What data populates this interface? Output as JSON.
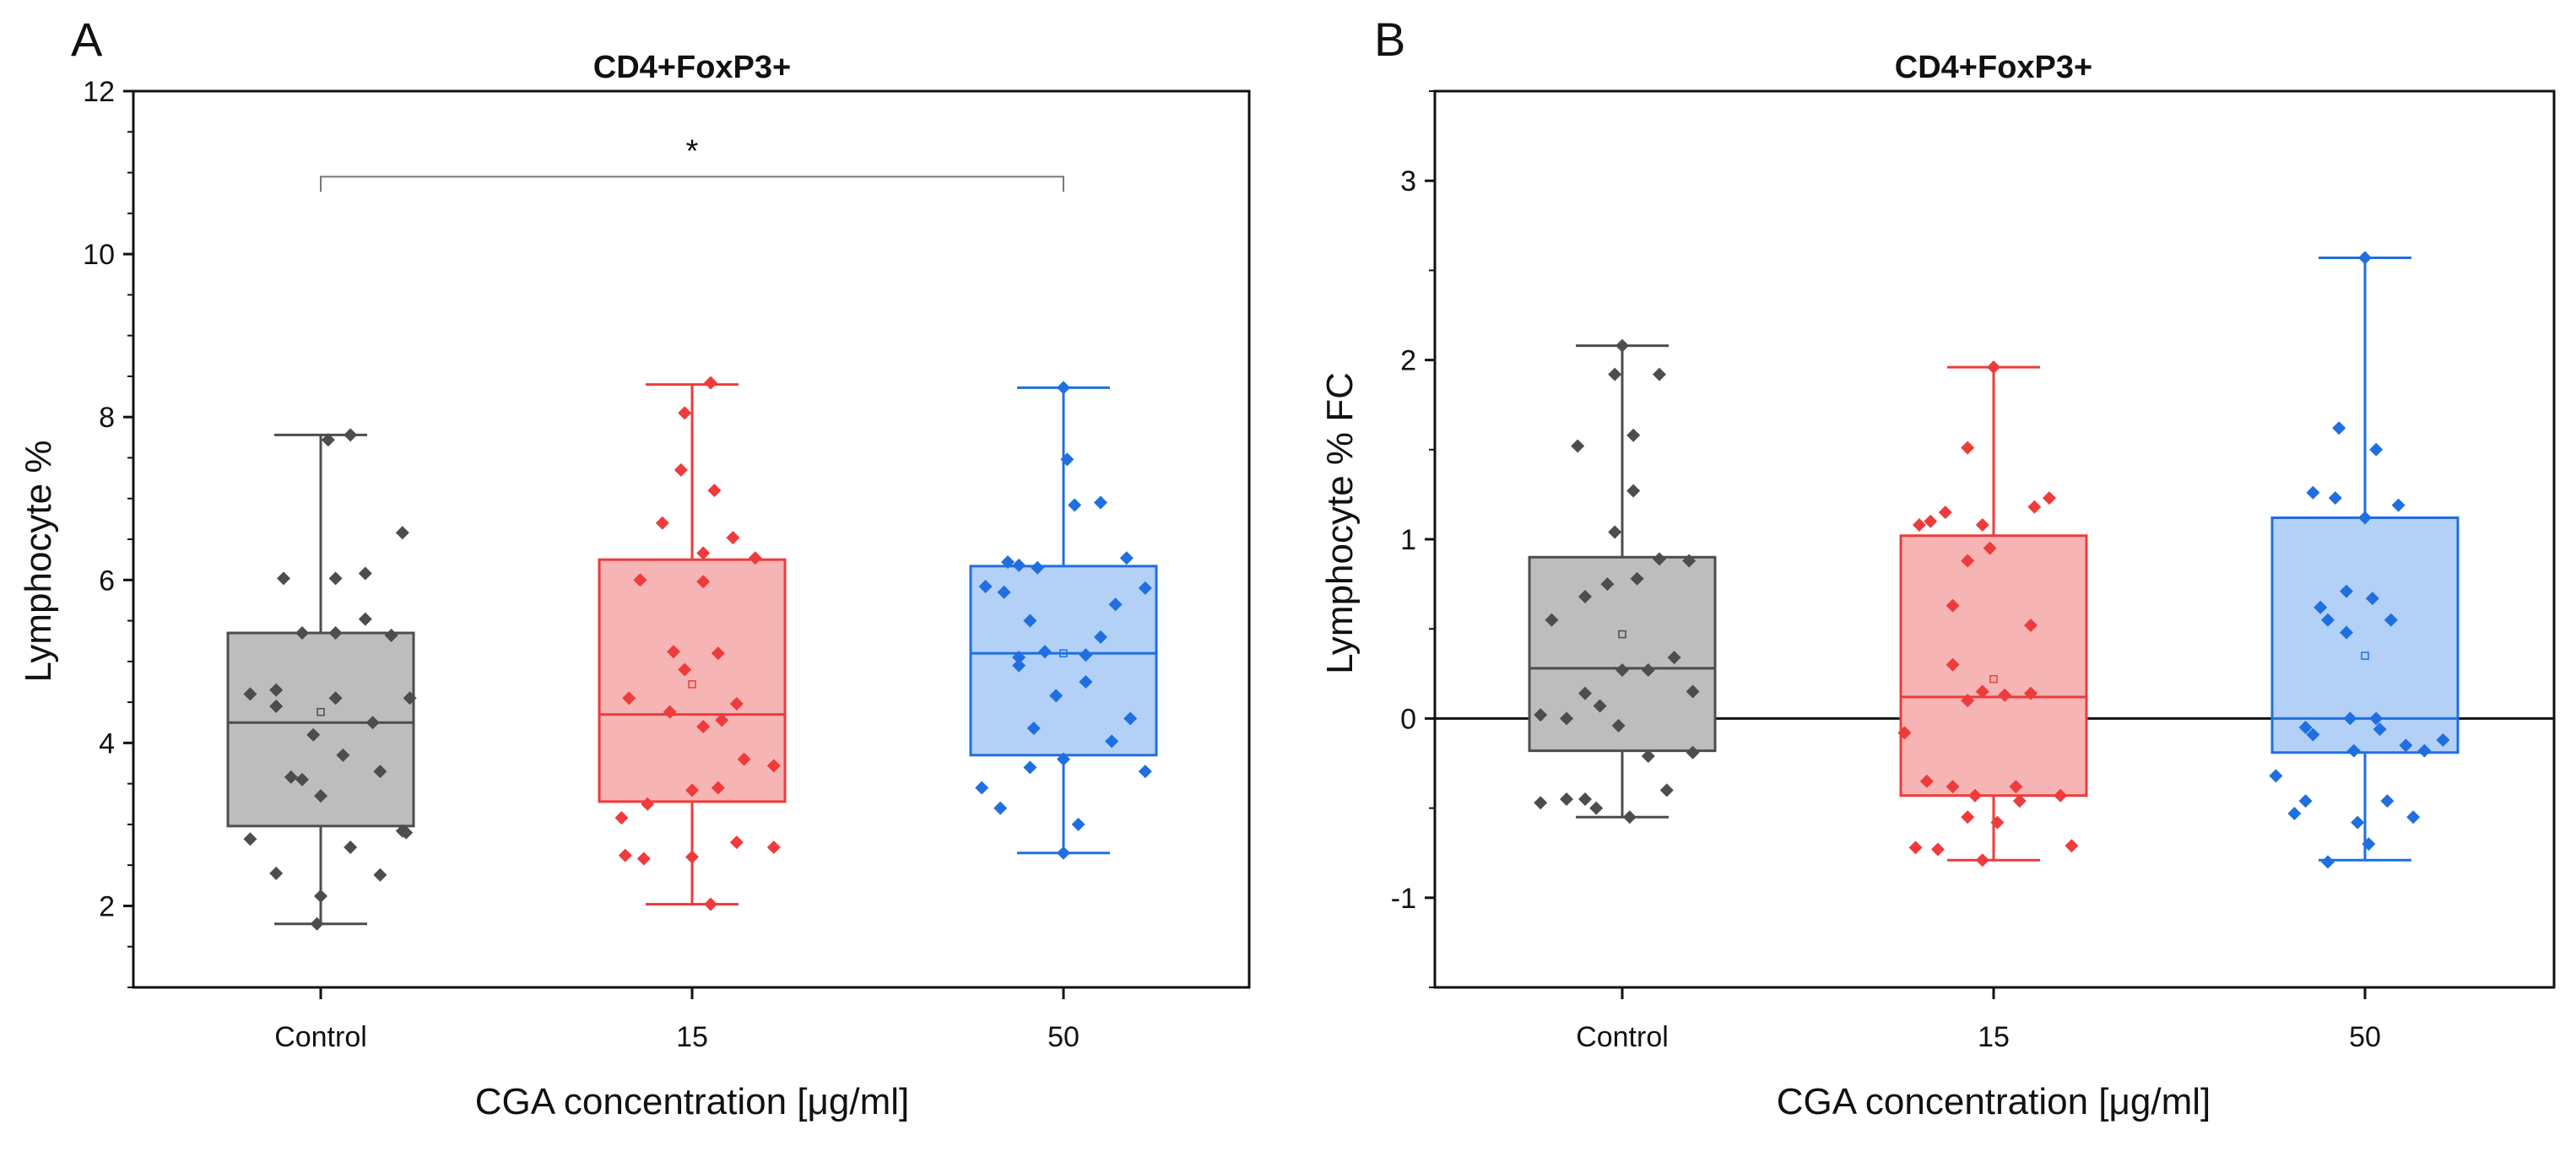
{
  "chart_data": [
    {
      "panel_label": "A",
      "type": "box",
      "title": "CD4+FoxP3+",
      "xlabel": "CGA concentration [μg/ml]",
      "ylabel": "Lymphocyte %",
      "ylim": [
        1,
        12
      ],
      "yticks": [
        2,
        4,
        6,
        8,
        10,
        12
      ],
      "categories": [
        "Control",
        "15",
        "50"
      ],
      "series": [
        {
          "name": "Control",
          "color": "#4d4d4d",
          "fill": "#bdbdbd",
          "whisker_low": 1.78,
          "q1": 2.98,
          "median": 4.25,
          "q3": 5.35,
          "whisker_high": 7.78,
          "mean": 4.38,
          "points": [
            {
              "dx": -0.19,
              "y": 2.82
            },
            {
              "dx": -0.12,
              "y": 2.4
            },
            {
              "dx": -0.08,
              "y": 3.58
            },
            {
              "dx": -0.19,
              "y": 4.6
            },
            {
              "dx": -0.12,
              "y": 4.45
            },
            {
              "dx": -0.05,
              "y": 3.55
            },
            {
              "dx": -0.12,
              "y": 4.65
            },
            {
              "dx": -0.1,
              "y": 6.02
            },
            {
              "dx": -0.05,
              "y": 5.35
            },
            {
              "dx": -0.02,
              "y": 4.1
            },
            {
              "dx": 0.0,
              "y": 3.35
            },
            {
              "dx": 0.0,
              "y": 2.12
            },
            {
              "dx": -0.01,
              "y": 1.78
            },
            {
              "dx": 0.04,
              "y": 4.55
            },
            {
              "dx": 0.06,
              "y": 3.85
            },
            {
              "dx": 0.04,
              "y": 6.02
            },
            {
              "dx": 0.04,
              "y": 5.35
            },
            {
              "dx": 0.02,
              "y": 7.72
            },
            {
              "dx": 0.08,
              "y": 7.78
            },
            {
              "dx": 0.12,
              "y": 6.08
            },
            {
              "dx": 0.12,
              "y": 5.52
            },
            {
              "dx": 0.08,
              "y": 2.72
            },
            {
              "dx": 0.14,
              "y": 4.25
            },
            {
              "dx": 0.16,
              "y": 3.65
            },
            {
              "dx": 0.19,
              "y": 5.32
            },
            {
              "dx": 0.22,
              "y": 6.58
            },
            {
              "dx": 0.24,
              "y": 4.55
            },
            {
              "dx": 0.16,
              "y": 2.38
            },
            {
              "dx": 0.22,
              "y": 2.92
            },
            {
              "dx": 0.23,
              "y": 2.9
            }
          ]
        },
        {
          "name": "15",
          "color": "#ef3b3b",
          "fill": "#f7b4b4",
          "whisker_low": 2.02,
          "q1": 3.28,
          "median": 4.35,
          "q3": 6.25,
          "whisker_high": 8.4,
          "mean": 4.72,
          "points": [
            {
              "dx": -0.19,
              "y": 3.08
            },
            {
              "dx": -0.18,
              "y": 2.62
            },
            {
              "dx": -0.13,
              "y": 2.58
            },
            {
              "dx": -0.17,
              "y": 4.55
            },
            {
              "dx": -0.14,
              "y": 6.0
            },
            {
              "dx": -0.08,
              "y": 6.7
            },
            {
              "dx": -0.12,
              "y": 3.25
            },
            {
              "dx": -0.06,
              "y": 4.38
            },
            {
              "dx": -0.05,
              "y": 5.12
            },
            {
              "dx": -0.03,
              "y": 7.35
            },
            {
              "dx": -0.02,
              "y": 8.05
            },
            {
              "dx": -0.02,
              "y": 4.9
            },
            {
              "dx": 0.0,
              "y": 3.42
            },
            {
              "dx": 0.0,
              "y": 2.6
            },
            {
              "dx": 0.03,
              "y": 5.98
            },
            {
              "dx": 0.03,
              "y": 6.33
            },
            {
              "dx": 0.03,
              "y": 4.2
            },
            {
              "dx": 0.05,
              "y": 2.02
            },
            {
              "dx": 0.05,
              "y": 8.42
            },
            {
              "dx": 0.06,
              "y": 7.1
            },
            {
              "dx": 0.07,
              "y": 5.1
            },
            {
              "dx": 0.08,
              "y": 4.28
            },
            {
              "dx": 0.11,
              "y": 6.52
            },
            {
              "dx": 0.12,
              "y": 4.48
            },
            {
              "dx": 0.14,
              "y": 3.8
            },
            {
              "dx": 0.12,
              "y": 2.78
            },
            {
              "dx": 0.17,
              "y": 6.27
            },
            {
              "dx": 0.22,
              "y": 3.72
            },
            {
              "dx": 0.22,
              "y": 2.72
            },
            {
              "dx": 0.07,
              "y": 3.45
            }
          ]
        },
        {
          "name": "50",
          "color": "#1f6fe0",
          "fill": "#b3d0f6",
          "whisker_low": 2.65,
          "q1": 3.85,
          "median": 5.1,
          "q3": 6.17,
          "whisker_high": 8.36,
          "mean": 5.1,
          "points": [
            {
              "dx": -0.22,
              "y": 3.45
            },
            {
              "dx": -0.17,
              "y": 3.2
            },
            {
              "dx": -0.21,
              "y": 5.92
            },
            {
              "dx": -0.16,
              "y": 5.85
            },
            {
              "dx": -0.12,
              "y": 6.18
            },
            {
              "dx": -0.07,
              "y": 6.15
            },
            {
              "dx": -0.15,
              "y": 6.22
            },
            {
              "dx": -0.12,
              "y": 4.95
            },
            {
              "dx": -0.09,
              "y": 5.5
            },
            {
              "dx": -0.08,
              "y": 4.18
            },
            {
              "dx": -0.09,
              "y": 3.7
            },
            {
              "dx": -0.05,
              "y": 5.12
            },
            {
              "dx": -0.02,
              "y": 4.58
            },
            {
              "dx": 0.0,
              "y": 3.8
            },
            {
              "dx": 0.0,
              "y": 2.65
            },
            {
              "dx": 0.0,
              "y": 8.36
            },
            {
              "dx": 0.01,
              "y": 7.48
            },
            {
              "dx": 0.03,
              "y": 6.92
            },
            {
              "dx": 0.06,
              "y": 4.75
            },
            {
              "dx": 0.06,
              "y": 5.08
            },
            {
              "dx": 0.04,
              "y": 3.0
            },
            {
              "dx": 0.1,
              "y": 6.95
            },
            {
              "dx": 0.1,
              "y": 5.3
            },
            {
              "dx": 0.14,
              "y": 5.7
            },
            {
              "dx": 0.13,
              "y": 4.02
            },
            {
              "dx": 0.17,
              "y": 6.27
            },
            {
              "dx": 0.22,
              "y": 5.9
            },
            {
              "dx": 0.22,
              "y": 3.65
            },
            {
              "dx": 0.18,
              "y": 4.3
            },
            {
              "dx": -0.12,
              "y": 5.05
            }
          ]
        }
      ],
      "significance": {
        "from": 0,
        "to": 2,
        "y": 10.95,
        "label": "*"
      }
    },
    {
      "panel_label": "B",
      "type": "box",
      "title": "CD4+FoxP3+",
      "xlabel": "CGA concentration [μg/ml]",
      "ylabel": "Lymphocyte % FC",
      "ylim": [
        -1.5,
        3.5
      ],
      "yticks": [
        -1,
        0,
        1,
        2,
        3
      ],
      "reference_line": 0,
      "categories": [
        "Control",
        "15",
        "50"
      ],
      "series": [
        {
          "name": "Control",
          "color": "#4d4d4d",
          "fill": "#bdbdbd",
          "whisker_low": -0.55,
          "q1": -0.18,
          "median": 0.28,
          "q3": 0.9,
          "whisker_high": 2.08,
          "mean": 0.47,
          "points": [
            {
              "dx": -0.22,
              "y": -0.47
            },
            {
              "dx": -0.15,
              "y": -0.45
            },
            {
              "dx": -0.1,
              "y": -0.45
            },
            {
              "dx": -0.22,
              "y": 0.02
            },
            {
              "dx": -0.19,
              "y": 0.55
            },
            {
              "dx": -0.15,
              "y": 0.0
            },
            {
              "dx": -0.12,
              "y": 1.52
            },
            {
              "dx": -0.1,
              "y": 0.68
            },
            {
              "dx": -0.1,
              "y": 0.14
            },
            {
              "dx": -0.06,
              "y": 0.07
            },
            {
              "dx": -0.07,
              "y": -0.5
            },
            {
              "dx": -0.04,
              "y": 0.75
            },
            {
              "dx": -0.02,
              "y": 1.04
            },
            {
              "dx": -0.02,
              "y": 1.92
            },
            {
              "dx": 0.0,
              "y": 2.08
            },
            {
              "dx": 0.0,
              "y": 0.27
            },
            {
              "dx": -0.01,
              "y": -0.04
            },
            {
              "dx": 0.02,
              "y": -0.55
            },
            {
              "dx": 0.03,
              "y": 1.27
            },
            {
              "dx": 0.03,
              "y": 1.58
            },
            {
              "dx": 0.04,
              "y": 0.78
            },
            {
              "dx": 0.07,
              "y": 0.27
            },
            {
              "dx": 0.07,
              "y": -0.21
            },
            {
              "dx": 0.1,
              "y": 1.92
            },
            {
              "dx": 0.1,
              "y": 0.89
            },
            {
              "dx": 0.12,
              "y": -0.4
            },
            {
              "dx": 0.14,
              "y": 0.34
            },
            {
              "dx": 0.18,
              "y": 0.88
            },
            {
              "dx": 0.19,
              "y": 0.15
            },
            {
              "dx": 0.19,
              "y": -0.19
            }
          ]
        },
        {
          "name": "15",
          "color": "#ef3b3b",
          "fill": "#f7b4b4",
          "whisker_low": -0.79,
          "q1": -0.43,
          "median": 0.12,
          "q3": 1.02,
          "whisker_high": 1.96,
          "mean": 0.22,
          "points": [
            {
              "dx": -0.24,
              "y": -0.08
            },
            {
              "dx": -0.21,
              "y": -0.72
            },
            {
              "dx": -0.18,
              "y": -0.35
            },
            {
              "dx": -0.2,
              "y": 1.08
            },
            {
              "dx": -0.15,
              "y": -0.73
            },
            {
              "dx": -0.17,
              "y": 1.1
            },
            {
              "dx": -0.13,
              "y": 1.15
            },
            {
              "dx": -0.11,
              "y": -0.38
            },
            {
              "dx": -0.11,
              "y": 0.63
            },
            {
              "dx": -0.11,
              "y": 0.3
            },
            {
              "dx": -0.07,
              "y": 1.51
            },
            {
              "dx": -0.07,
              "y": 0.88
            },
            {
              "dx": -0.07,
              "y": 0.1
            },
            {
              "dx": -0.07,
              "y": -0.55
            },
            {
              "dx": -0.05,
              "y": -0.43
            },
            {
              "dx": -0.03,
              "y": 1.08
            },
            {
              "dx": -0.03,
              "y": 0.15
            },
            {
              "dx": -0.03,
              "y": -0.79
            },
            {
              "dx": -0.01,
              "y": 0.95
            },
            {
              "dx": 0.0,
              "y": 1.96
            },
            {
              "dx": 0.01,
              "y": -0.58
            },
            {
              "dx": 0.03,
              "y": 0.13
            },
            {
              "dx": 0.06,
              "y": -0.38
            },
            {
              "dx": 0.07,
              "y": -0.46
            },
            {
              "dx": 0.1,
              "y": 0.52
            },
            {
              "dx": 0.1,
              "y": 0.14
            },
            {
              "dx": 0.11,
              "y": 1.18
            },
            {
              "dx": 0.15,
              "y": 1.23
            },
            {
              "dx": 0.18,
              "y": -0.43
            },
            {
              "dx": 0.21,
              "y": -0.71
            }
          ]
        },
        {
          "name": "50",
          "color": "#1f6fe0",
          "fill": "#b3d0f6",
          "whisker_low": -0.79,
          "q1": -0.19,
          "median": 0.0,
          "q3": 1.12,
          "whisker_high": 2.57,
          "mean": 0.35,
          "points": [
            {
              "dx": -0.24,
              "y": -0.32
            },
            {
              "dx": -0.19,
              "y": -0.53
            },
            {
              "dx": -0.16,
              "y": -0.46
            },
            {
              "dx": -0.16,
              "y": -0.05
            },
            {
              "dx": -0.14,
              "y": -0.09
            },
            {
              "dx": -0.14,
              "y": 1.26
            },
            {
              "dx": -0.12,
              "y": 0.62
            },
            {
              "dx": -0.1,
              "y": 0.55
            },
            {
              "dx": -0.1,
              "y": -0.8
            },
            {
              "dx": -0.08,
              "y": 1.23
            },
            {
              "dx": -0.07,
              "y": 1.62
            },
            {
              "dx": -0.05,
              "y": 0.71
            },
            {
              "dx": -0.05,
              "y": 0.48
            },
            {
              "dx": -0.04,
              "y": 0.0
            },
            {
              "dx": -0.03,
              "y": -0.18
            },
            {
              "dx": -0.02,
              "y": -0.58
            },
            {
              "dx": 0.0,
              "y": 2.57
            },
            {
              "dx": 0.0,
              "y": 1.12
            },
            {
              "dx": 0.01,
              "y": -0.7
            },
            {
              "dx": 0.02,
              "y": 0.67
            },
            {
              "dx": 0.03,
              "y": 1.5
            },
            {
              "dx": 0.03,
              "y": 0.0
            },
            {
              "dx": 0.04,
              "y": -0.06
            },
            {
              "dx": 0.06,
              "y": -0.46
            },
            {
              "dx": 0.07,
              "y": 0.55
            },
            {
              "dx": 0.09,
              "y": 1.19
            },
            {
              "dx": 0.11,
              "y": -0.15
            },
            {
              "dx": 0.13,
              "y": -0.55
            },
            {
              "dx": 0.16,
              "y": -0.18
            },
            {
              "dx": 0.21,
              "y": -0.12
            }
          ]
        }
      ]
    }
  ]
}
